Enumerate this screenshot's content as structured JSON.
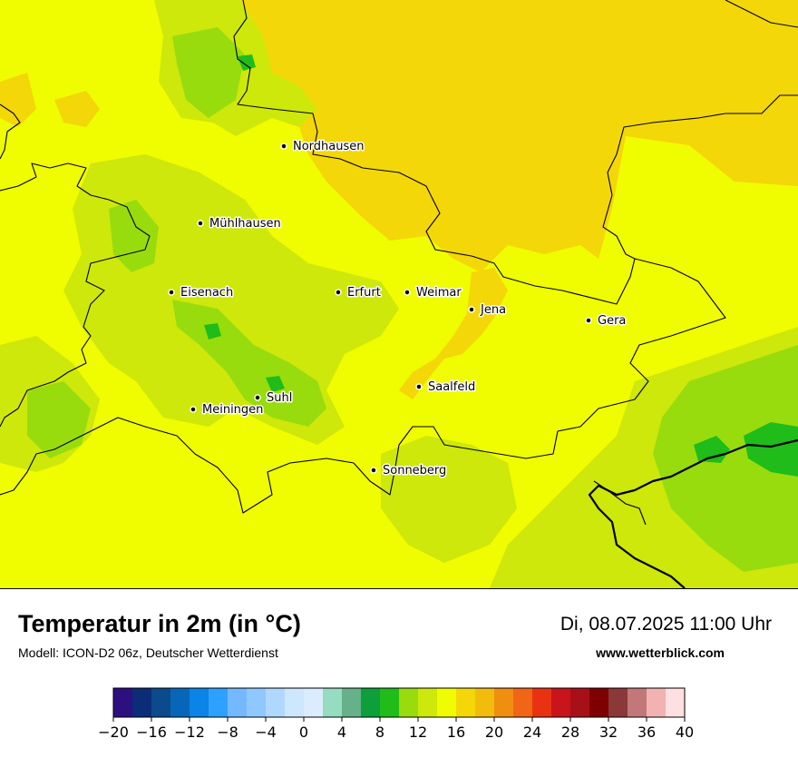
{
  "map": {
    "cities": [
      {
        "name": "Nordhausen",
        "label_side": "right"
      },
      {
        "name": "Mühlhausen",
        "label_side": "right"
      },
      {
        "name": "Eisenach",
        "label_side": "right"
      },
      {
        "name": "Erfurt",
        "label_side": "right"
      },
      {
        "name": "Weimar",
        "label_side": "right"
      },
      {
        "name": "Jena",
        "label_side": "right"
      },
      {
        "name": "Gera",
        "label_side": "right"
      },
      {
        "name": "Saalfeld",
        "label_side": "right"
      },
      {
        "name": "Suhl",
        "label_side": "right"
      },
      {
        "name": "Meiningen",
        "label_side": "right"
      },
      {
        "name": "Sonneberg",
        "label_side": "right"
      }
    ]
  },
  "header": {
    "title": "Temperatur in 2m (in °C)",
    "model": "Modell: ICON-D2 06z, Deutscher Wetterdienst",
    "datetime": "Di, 08.07.2025 11:00 Uhr",
    "site": "www.wetterblick.com"
  },
  "legend": {
    "min": -20,
    "step": 2,
    "colors": [
      "#2e0f7f",
      "#0b2d78",
      "#0b4a8d",
      "#0866b8",
      "#0a84e6",
      "#2ea0ff",
      "#74b8ff",
      "#8ec8ff",
      "#b0d8ff",
      "#cde7ff",
      "#dcecff",
      "#96dcc0",
      "#66b08a",
      "#0e9e3c",
      "#1fbc1a",
      "#98dc0e",
      "#cde80a",
      "#f0fc00",
      "#f3d708",
      "#f2bc0c",
      "#f08e10",
      "#f06614",
      "#e83212",
      "#c8141a",
      "#a81018",
      "#7e0000",
      "#8a3838",
      "#c27878",
      "#f2b2b2",
      "#ffe0e0"
    ],
    "ticks": [
      "−20",
      "−16",
      "−12",
      "−8",
      "−4",
      "0",
      "4",
      "8",
      "12",
      "16",
      "20",
      "24",
      "28",
      "32",
      "36",
      "40"
    ]
  }
}
